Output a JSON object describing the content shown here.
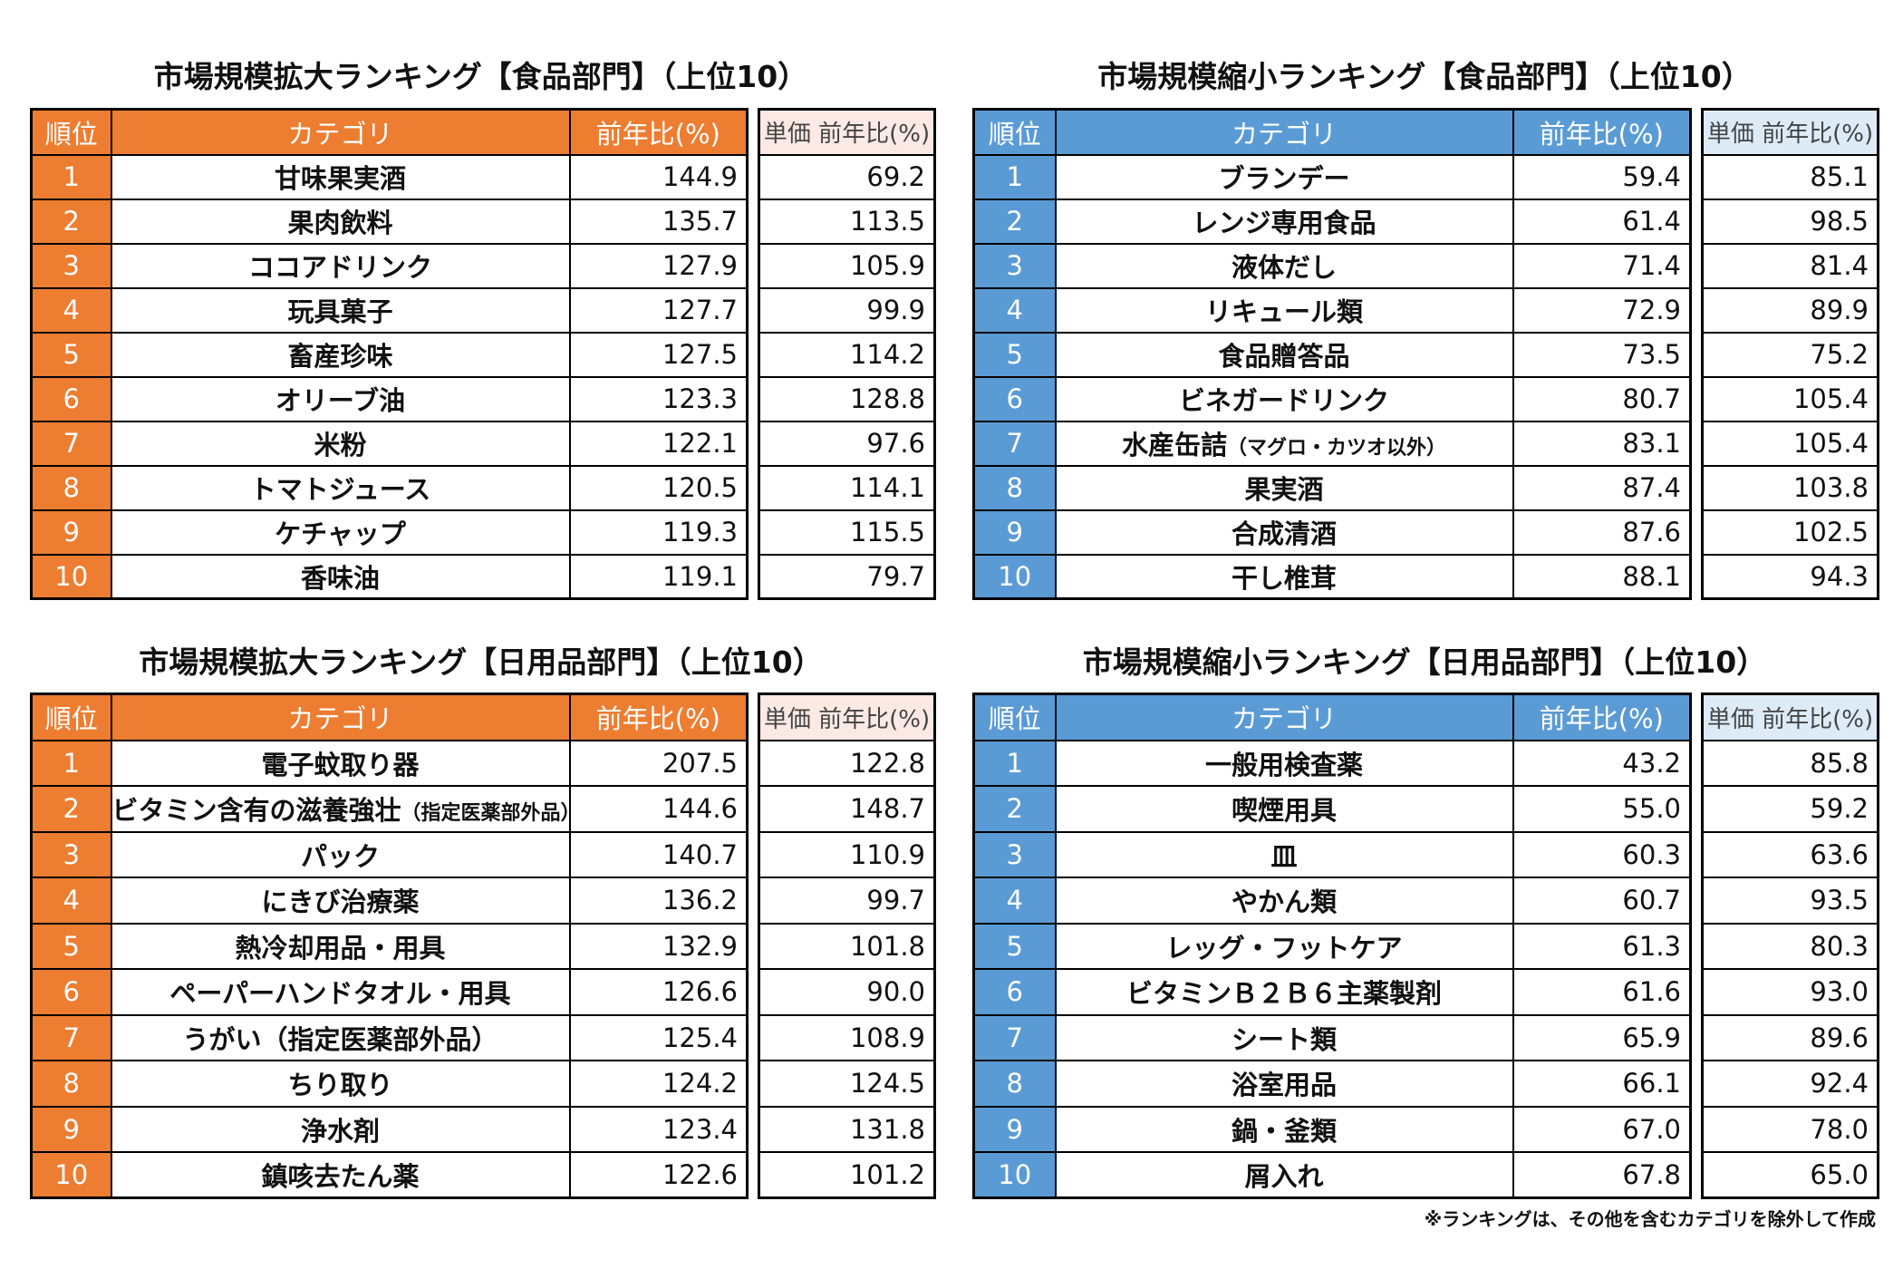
{
  "colors": {
    "expansion_header": "#ED7D31",
    "expansion_unit_header": "#FBE9E3",
    "shrink_header": "#5B9BD5",
    "shrink_unit_header": "#DDEBF7"
  },
  "headers": {
    "rank": "順位",
    "category": "カテゴリ",
    "yoy": "前年比(%)",
    "unit_yoy": "単価 前年比(%)"
  },
  "panels": {
    "food_expansion": {
      "title": "市場規模拡大ランキング【食品部門】（上位10）",
      "rows": [
        {
          "rank": "1",
          "category": "甘味果実酒",
          "note": "",
          "yoy": "144.9",
          "unit_yoy": "69.2"
        },
        {
          "rank": "2",
          "category": "果肉飲料",
          "note": "",
          "yoy": "135.7",
          "unit_yoy": "113.5"
        },
        {
          "rank": "3",
          "category": "ココアドリンク",
          "note": "",
          "yoy": "127.9",
          "unit_yoy": "105.9"
        },
        {
          "rank": "4",
          "category": "玩具菓子",
          "note": "",
          "yoy": "127.7",
          "unit_yoy": "99.9"
        },
        {
          "rank": "5",
          "category": "畜産珍味",
          "note": "",
          "yoy": "127.5",
          "unit_yoy": "114.2"
        },
        {
          "rank": "6",
          "category": "オリーブ油",
          "note": "",
          "yoy": "123.3",
          "unit_yoy": "128.8"
        },
        {
          "rank": "7",
          "category": "米粉",
          "note": "",
          "yoy": "122.1",
          "unit_yoy": "97.6"
        },
        {
          "rank": "8",
          "category": "トマトジュース",
          "note": "",
          "yoy": "120.5",
          "unit_yoy": "114.1"
        },
        {
          "rank": "9",
          "category": "ケチャップ",
          "note": "",
          "yoy": "119.3",
          "unit_yoy": "115.5"
        },
        {
          "rank": "10",
          "category": "香味油",
          "note": "",
          "yoy": "119.1",
          "unit_yoy": "79.7"
        }
      ]
    },
    "food_shrink": {
      "title": "市場規模縮小ランキング【食品部門】（上位10）",
      "rows": [
        {
          "rank": "1",
          "category": "ブランデー",
          "note": "",
          "yoy": "59.4",
          "unit_yoy": "85.1"
        },
        {
          "rank": "2",
          "category": "レンジ専用食品",
          "note": "",
          "yoy": "61.4",
          "unit_yoy": "98.5"
        },
        {
          "rank": "3",
          "category": "液体だし",
          "note": "",
          "yoy": "71.4",
          "unit_yoy": "81.4"
        },
        {
          "rank": "4",
          "category": "リキュール類",
          "note": "",
          "yoy": "72.9",
          "unit_yoy": "89.9"
        },
        {
          "rank": "5",
          "category": "食品贈答品",
          "note": "",
          "yoy": "73.5",
          "unit_yoy": "75.2"
        },
        {
          "rank": "6",
          "category": "ビネガードリンク",
          "note": "",
          "yoy": "80.7",
          "unit_yoy": "105.4"
        },
        {
          "rank": "7",
          "category": "水産缶詰",
          "note": "（マグロ・カツオ以外）",
          "yoy": "83.1",
          "unit_yoy": "105.4"
        },
        {
          "rank": "8",
          "category": "果実酒",
          "note": "",
          "yoy": "87.4",
          "unit_yoy": "103.8"
        },
        {
          "rank": "9",
          "category": "合成清酒",
          "note": "",
          "yoy": "87.6",
          "unit_yoy": "102.5"
        },
        {
          "rank": "10",
          "category": "干し椎茸",
          "note": "",
          "yoy": "88.1",
          "unit_yoy": "94.3"
        }
      ]
    },
    "daily_expansion": {
      "title": "市場規模拡大ランキング【日用品部門】（上位10）",
      "rows": [
        {
          "rank": "1",
          "category": "電子蚊取り器",
          "note": "",
          "yoy": "207.5",
          "unit_yoy": "122.8"
        },
        {
          "rank": "2",
          "category": "ビタミン含有の滋養強壮",
          "note": "（指定医薬部外品）",
          "yoy": "144.6",
          "unit_yoy": "148.7"
        },
        {
          "rank": "3",
          "category": "パック",
          "note": "",
          "yoy": "140.7",
          "unit_yoy": "110.9"
        },
        {
          "rank": "4",
          "category": "にきび治療薬",
          "note": "",
          "yoy": "136.2",
          "unit_yoy": "99.7"
        },
        {
          "rank": "5",
          "category": "熱冷却用品・用具",
          "note": "",
          "yoy": "132.9",
          "unit_yoy": "101.8"
        },
        {
          "rank": "6",
          "category": "ペーパーハンドタオル・用具",
          "note": "",
          "yoy": "126.6",
          "unit_yoy": "90.0"
        },
        {
          "rank": "7",
          "category": "うがい（指定医薬部外品）",
          "note": "",
          "yoy": "125.4",
          "unit_yoy": "108.9"
        },
        {
          "rank": "8",
          "category": "ちり取り",
          "note": "",
          "yoy": "124.2",
          "unit_yoy": "124.5"
        },
        {
          "rank": "9",
          "category": "浄水剤",
          "note": "",
          "yoy": "123.4",
          "unit_yoy": "131.8"
        },
        {
          "rank": "10",
          "category": "鎮咳去たん薬",
          "note": "",
          "yoy": "122.6",
          "unit_yoy": "101.2"
        }
      ]
    },
    "daily_shrink": {
      "title": "市場規模縮小ランキング【日用品部門】（上位10）",
      "rows": [
        {
          "rank": "1",
          "category": "一般用検査薬",
          "note": "",
          "yoy": "43.2",
          "unit_yoy": "85.8"
        },
        {
          "rank": "2",
          "category": "喫煙用具",
          "note": "",
          "yoy": "55.0",
          "unit_yoy": "59.2"
        },
        {
          "rank": "3",
          "category": "皿",
          "note": "",
          "yoy": "60.3",
          "unit_yoy": "63.6"
        },
        {
          "rank": "4",
          "category": "やかん類",
          "note": "",
          "yoy": "60.7",
          "unit_yoy": "93.5"
        },
        {
          "rank": "5",
          "category": "レッグ・フットケア",
          "note": "",
          "yoy": "61.3",
          "unit_yoy": "80.3"
        },
        {
          "rank": "6",
          "category": "ビタミンＢ２Ｂ６主薬製剤",
          "note": "",
          "yoy": "61.6",
          "unit_yoy": "93.0"
        },
        {
          "rank": "7",
          "category": "シート類",
          "note": "",
          "yoy": "65.9",
          "unit_yoy": "89.6"
        },
        {
          "rank": "8",
          "category": "浴室用品",
          "note": "",
          "yoy": "66.1",
          "unit_yoy": "92.4"
        },
        {
          "rank": "9",
          "category": "鍋・釜類",
          "note": "",
          "yoy": "67.0",
          "unit_yoy": "78.0"
        },
        {
          "rank": "10",
          "category": "屑入れ",
          "note": "",
          "yoy": "67.8",
          "unit_yoy": "65.0"
        }
      ]
    }
  },
  "footnote": "※ランキングは、その他を含むカテゴリを除外して作成"
}
